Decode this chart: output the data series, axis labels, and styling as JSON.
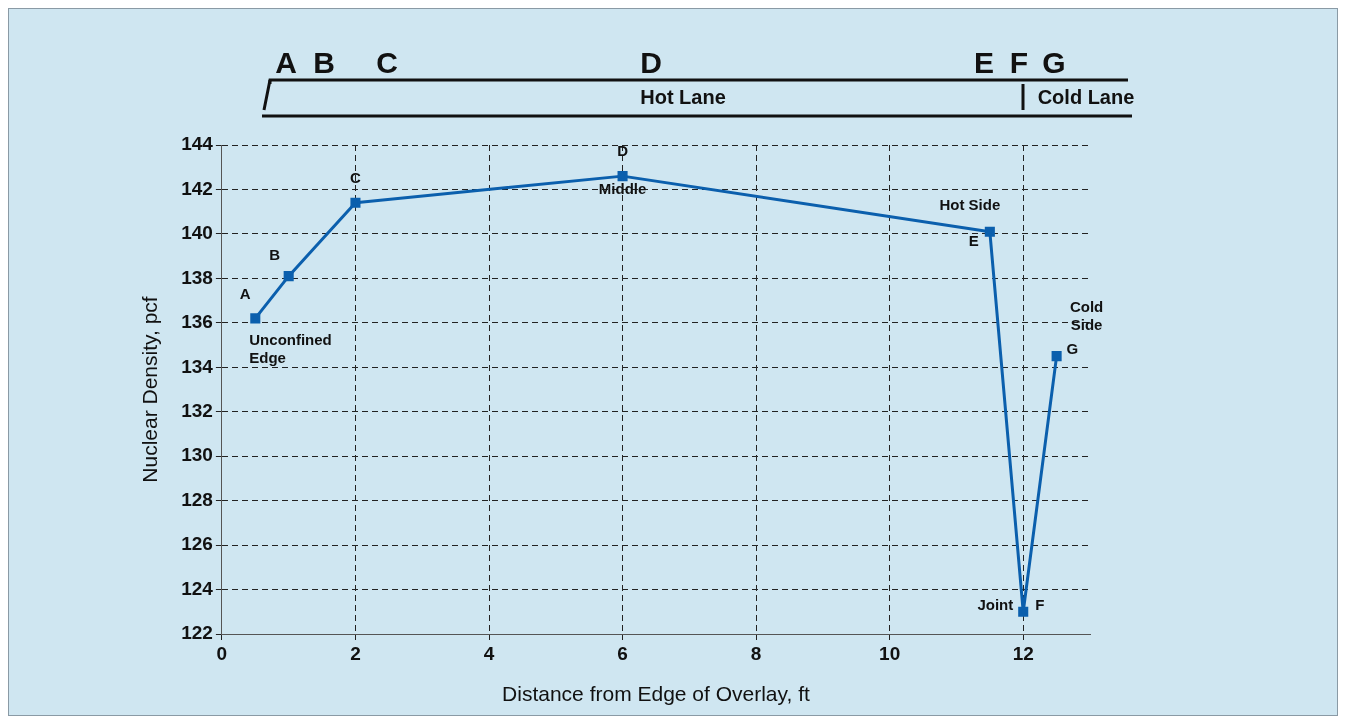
{
  "chart_data": {
    "type": "line",
    "xlabel": "Distance from Edge of Overlay, ft",
    "ylabel": "Nuclear Density, pcf",
    "x": [
      0.5,
      1,
      2,
      6,
      11.5,
      12,
      12.5
    ],
    "series": [
      {
        "color": "#0b5fad",
        "values": [
          136.2,
          138.1,
          141.4,
          142.6,
          140.1,
          123.0,
          134.5
        ]
      }
    ],
    "xlim": [
      0,
      13
    ],
    "xticks": [
      0,
      2,
      4,
      6,
      8,
      10,
      12
    ],
    "ylim": [
      122,
      144
    ],
    "yticks": [
      122,
      124,
      126,
      128,
      130,
      132,
      134,
      136,
      138,
      140,
      142,
      144
    ],
    "grid": true,
    "legend": false,
    "marker": "square",
    "line_style": "solid",
    "annotations": [
      {
        "text": "A",
        "x": 0.5,
        "y": 136.2
      },
      {
        "text": "Unconfined\nEdge",
        "x": 0.5,
        "y": 136.2
      },
      {
        "text": "B",
        "x": 1,
        "y": 138.1
      },
      {
        "text": "C",
        "x": 2,
        "y": 141.4
      },
      {
        "text": "D",
        "x": 6,
        "y": 142.6
      },
      {
        "text": "Middle",
        "x": 6,
        "y": 142.6
      },
      {
        "text": "Hot Side",
        "x": 11.5,
        "y": 140.1
      },
      {
        "text": "E",
        "x": 11.5,
        "y": 140.1
      },
      {
        "text": "Joint",
        "x": 12,
        "y": 123.0
      },
      {
        "text": "F",
        "x": 12,
        "y": 123.0
      },
      {
        "text": "Cold\nSide",
        "x": 12.5,
        "y": 134.5
      },
      {
        "text": "G",
        "x": 12.5,
        "y": 134.5
      },
      "A",
      "B",
      "C",
      "D",
      "E",
      "F",
      "G",
      "Hot Lane",
      "Cold Lane"
    ]
  }
}
